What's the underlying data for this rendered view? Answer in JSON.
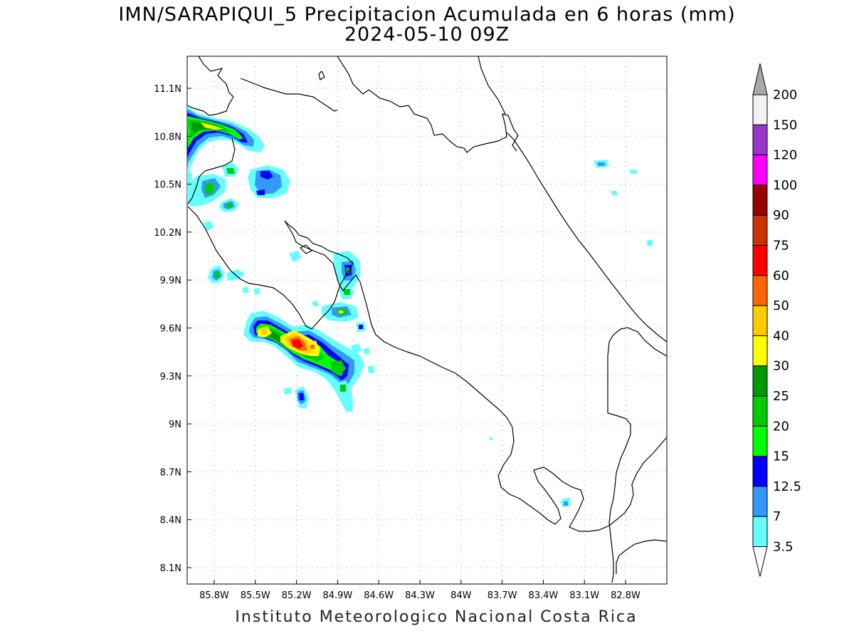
{
  "title_line1": "IMN/SARAPIQUI_5 Precipitacion Acumulada en 6 horas (mm)",
  "title_line2": "2024-05-10 09Z",
  "footer": "Instituto Meteorologico Nacional Costa Rica",
  "map": {
    "lon_labels": [
      "85.8W",
      "85.5W",
      "85.2W",
      "84.9W",
      "84.6W",
      "84.3W",
      "84W",
      "83.7W",
      "83.4W",
      "83.1W",
      "82.8W"
    ],
    "lat_labels": [
      "11.1N",
      "10.8N",
      "10.5N",
      "10.2N",
      "9.9N",
      "9.6N",
      "9.3N",
      "9N",
      "8.7N",
      "8.4N",
      "8.1N"
    ],
    "gridlines": "dotted",
    "colors": {
      "coastline": "#000000",
      "grid": "#9a9a9a"
    }
  },
  "colorbar": {
    "labels": [
      "200",
      "150",
      "120",
      "100",
      "90",
      "75",
      "60",
      "50",
      "40",
      "30",
      "25",
      "20",
      "15",
      "12.5",
      "7",
      "3.5"
    ],
    "colors_top_to_bottom": [
      "#f2f2f2",
      "#9933cc",
      "#ff00ff",
      "#990000",
      "#cc3300",
      "#ff0000",
      "#ff6600",
      "#ffcc00",
      "#ffff00",
      "#009900",
      "#00cc00",
      "#00ff00",
      "#0000ff",
      "#3399ff",
      "#66ffff"
    ],
    "over_arrow_color": "#a9a9a9",
    "under_arrow_color": "#ffffff",
    "units": "mm"
  },
  "precip_levels_colors": {
    "3.5": "#66ffff",
    "7": "#3399ff",
    "12.5": "#0000ff",
    "15": "#00ff00",
    "20": "#00cc00",
    "25": "#009900",
    "30": "#ffff00",
    "40": "#ffcc00",
    "50": "#ff6600",
    "60": "#ff0000"
  }
}
